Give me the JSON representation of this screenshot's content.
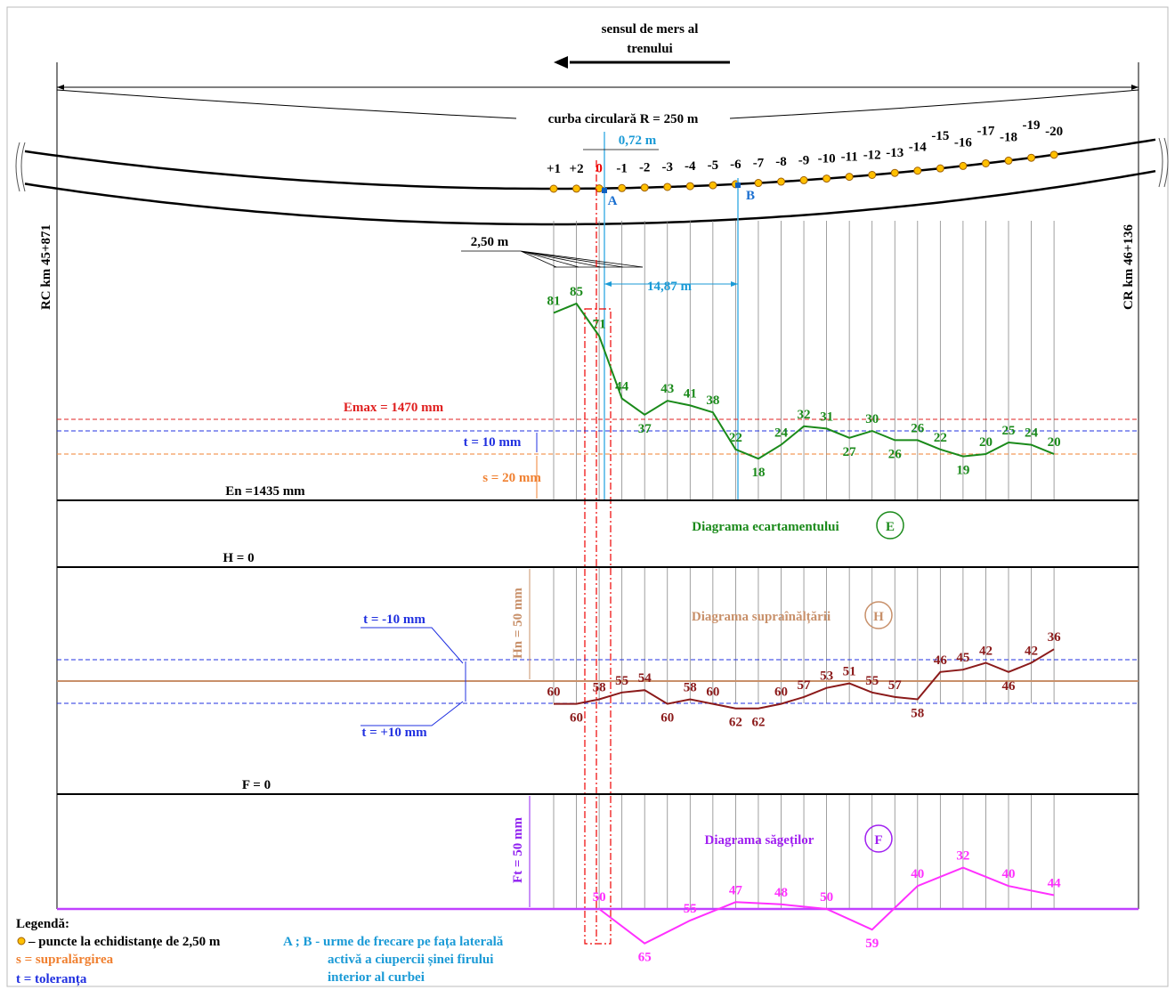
{
  "header": {
    "direction": [
      "sensul de mers al",
      "trenului"
    ],
    "curve": "curba circulară R = 250 m",
    "left_km": "RC km 45+871",
    "right_km": "CR km 46+136"
  },
  "track": {
    "stations": [
      "+1",
      "+2",
      "0",
      "-1",
      "-2",
      "-3",
      "-4",
      "-5",
      "-6",
      "-7",
      "-8",
      "-9",
      "-10",
      "-11",
      "-12",
      "-13",
      "-14",
      "-15",
      "-16",
      "-17",
      "-18",
      "-19",
      "-20"
    ],
    "dim_offset": "0,72 m",
    "dim_step": "2,50 m",
    "dim_ab": "14,87 m",
    "mark_a": "A",
    "mark_b": "B"
  },
  "gauge": {
    "title": "Diagrama ecartamentului",
    "symbol": "E",
    "emax": "Emax = 1470 mm",
    "tolerance": "t = 10 mm",
    "widening": "s = 20 mm",
    "nominal": "En =1435 mm",
    "values": [
      81,
      85,
      71,
      44,
      37,
      43,
      41,
      38,
      22,
      18,
      24,
      32,
      31,
      27,
      30,
      26,
      26,
      22,
      19,
      20,
      25,
      24,
      20
    ]
  },
  "cant": {
    "title": "Diagrama supraînălțării",
    "symbol": "H",
    "zero": "H = 0",
    "nominal": "Hn = 50 mm",
    "tol_minus": "t = -10 mm",
    "tol_plus": "t = +10 mm",
    "values": [
      60,
      60,
      58,
      55,
      54,
      60,
      58,
      60,
      62,
      62,
      60,
      57,
      53,
      51,
      55,
      57,
      58,
      46,
      45,
      42,
      46,
      42,
      36
    ]
  },
  "versine": {
    "title": "Diagrama săgeților",
    "symbol": "F",
    "zero": "F = 0",
    "nominal": "Ft = 50 mm",
    "values": [
      null,
      null,
      50,
      null,
      65,
      null,
      55,
      null,
      47,
      null,
      48,
      null,
      50,
      null,
      59,
      null,
      40,
      null,
      32,
      null,
      40,
      null,
      44
    ]
  },
  "legend": {
    "title": "Legendă:",
    "dots": "– puncte la echidistanțe de 2,50 m",
    "s": "s = supralărgirea",
    "t": "t = toleranța",
    "ab": [
      "A ; B - urme de frecare pe fața laterală",
      "activă a ciupercii șinei firului",
      "interior al curbei"
    ]
  }
}
